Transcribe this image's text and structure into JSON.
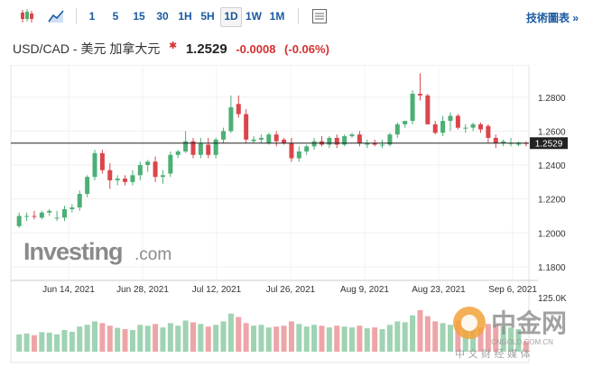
{
  "toolbar": {
    "timeframes": [
      "1",
      "5",
      "15",
      "30",
      "1H",
      "5H",
      "1D",
      "1W",
      "1M"
    ],
    "active_timeframe": "1D",
    "tech_chart_link": "技術圖表 »"
  },
  "header": {
    "pair": "USD/CAD - 美元 加拿大元",
    "alert_icon": "✱",
    "price": "1.2529",
    "change": "-0.0008",
    "change_pct": "(-0.06%)"
  },
  "logo": {
    "brand": "Investing",
    "suffix": ".com"
  },
  "watermark": {
    "name": "中金网",
    "url": "CNGOLD.COM.CN",
    "slogan": "中 文 财 经 媒 体"
  },
  "colors": {
    "up": "#4caf75",
    "down": "#d9464b",
    "vol_up": "#9fd3b2",
    "vol_down": "#eea5a8",
    "accent": "#1a5aa0"
  },
  "chart_data": {
    "type": "candlestick",
    "x_tick_labels": [
      "Jun 14, 2021",
      "Jun 28, 2021",
      "Jul 12, 2021",
      "Jul 26, 2021",
      "Aug 9, 2021",
      "Aug 23, 2021",
      "Sep 6, 2021"
    ],
    "y_tick_labels": [
      "1.2800",
      "1.2600",
      "1.2400",
      "1.2200",
      "1.2000",
      "1.1800"
    ],
    "ylim": [
      1.172,
      1.299
    ],
    "current_price_label": "1.2529",
    "current_price": 1.2529,
    "volume_axis_label": "125.0K",
    "volume_max": 125,
    "candles": [
      [
        1.204,
        1.212,
        1.203,
        1.21
      ],
      [
        1.21,
        1.212,
        1.207,
        1.21
      ],
      [
        1.21,
        1.213,
        1.208,
        1.2095
      ],
      [
        1.209,
        1.213,
        1.208,
        1.212
      ],
      [
        1.212,
        1.214,
        1.21,
        1.213
      ],
      [
        1.209,
        1.213,
        1.207,
        1.209
      ],
      [
        1.209,
        1.216,
        1.207,
        1.214
      ],
      [
        1.214,
        1.217,
        1.212,
        1.215
      ],
      [
        1.215,
        1.225,
        1.213,
        1.223
      ],
      [
        1.223,
        1.234,
        1.221,
        1.233
      ],
      [
        1.233,
        1.249,
        1.231,
        1.247
      ],
      [
        1.247,
        1.249,
        1.235,
        1.237
      ],
      [
        1.237,
        1.241,
        1.226,
        1.231
      ],
      [
        1.231,
        1.234,
        1.228,
        1.232
      ],
      [
        1.232,
        1.234,
        1.228,
        1.23
      ],
      [
        1.23,
        1.237,
        1.228,
        1.234
      ],
      [
        1.234,
        1.242,
        1.231,
        1.24
      ],
      [
        1.24,
        1.243,
        1.236,
        1.242
      ],
      [
        1.242,
        1.245,
        1.23,
        1.233
      ],
      [
        1.233,
        1.237,
        1.229,
        1.234
      ],
      [
        1.235,
        1.248,
        1.233,
        1.246
      ],
      [
        1.246,
        1.249,
        1.244,
        1.248
      ],
      [
        1.248,
        1.26,
        1.247,
        1.254
      ],
      [
        1.254,
        1.256,
        1.244,
        1.246
      ],
      [
        1.246,
        1.256,
        1.244,
        1.253
      ],
      [
        1.252,
        1.256,
        1.244,
        1.246
      ],
      [
        1.246,
        1.256,
        1.244,
        1.255
      ],
      [
        1.255,
        1.262,
        1.253,
        1.26
      ],
      [
        1.26,
        1.281,
        1.259,
        1.274
      ],
      [
        1.276,
        1.281,
        1.268,
        1.27
      ],
      [
        1.27,
        1.273,
        1.253,
        1.255
      ],
      [
        1.254,
        1.257,
        1.253,
        1.255
      ],
      [
        1.255,
        1.258,
        1.253,
        1.256
      ],
      [
        1.253,
        1.259,
        1.252,
        1.258
      ],
      [
        1.258,
        1.26,
        1.251,
        1.254
      ],
      [
        1.255,
        1.256,
        1.252,
        1.253
      ],
      [
        1.253,
        1.256,
        1.242,
        1.244
      ],
      [
        1.244,
        1.251,
        1.242,
        1.248
      ],
      [
        1.248,
        1.252,
        1.246,
        1.251
      ],
      [
        1.251,
        1.256,
        1.249,
        1.254
      ],
      [
        1.254,
        1.257,
        1.251,
        1.252
      ],
      [
        1.252,
        1.257,
        1.25,
        1.256
      ],
      [
        1.256,
        1.258,
        1.25,
        1.252
      ],
      [
        1.252,
        1.258,
        1.251,
        1.257
      ],
      [
        1.257,
        1.259,
        1.256,
        1.258
      ],
      [
        1.258,
        1.26,
        1.251,
        1.253
      ],
      [
        1.252,
        1.255,
        1.25,
        1.253
      ],
      [
        1.253,
        1.255,
        1.251,
        1.252
      ],
      [
        1.252,
        1.255,
        1.25,
        1.252
      ],
      [
        1.252,
        1.259,
        1.251,
        1.258
      ],
      [
        1.258,
        1.265,
        1.256,
        1.264
      ],
      [
        1.264,
        1.266,
        1.262,
        1.266
      ],
      [
        1.266,
        1.284,
        1.264,
        1.282
      ],
      [
        1.282,
        1.294,
        1.278,
        1.281
      ],
      [
        1.281,
        1.282,
        1.264,
        1.264
      ],
      [
        1.264,
        1.266,
        1.258,
        1.259
      ],
      [
        1.259,
        1.269,
        1.257,
        1.266
      ],
      [
        1.266,
        1.271,
        1.26,
        1.269
      ],
      [
        1.269,
        1.27,
        1.261,
        1.262
      ],
      [
        1.262,
        1.264,
        1.259,
        1.262
      ],
      [
        1.262,
        1.265,
        1.26,
        1.264
      ],
      [
        1.264,
        1.265,
        1.259,
        1.261
      ],
      [
        1.263,
        1.264,
        1.253,
        1.256
      ],
      [
        1.256,
        1.258,
        1.25,
        1.253
      ],
      [
        1.253,
        1.255,
        1.251,
        1.254
      ],
      [
        1.253,
        1.256,
        1.251,
        1.253
      ],
      [
        1.252,
        1.254,
        1.251,
        1.253
      ],
      [
        1.253,
        1.254,
        1.251,
        1.2529
      ]
    ],
    "volumes": [
      40,
      42,
      38,
      45,
      44,
      40,
      50,
      46,
      58,
      62,
      70,
      66,
      60,
      55,
      52,
      50,
      62,
      60,
      64,
      56,
      66,
      60,
      72,
      68,
      64,
      58,
      62,
      70,
      88,
      80,
      66,
      60,
      62,
      56,
      58,
      60,
      70,
      64,
      58,
      62,
      60,
      56,
      60,
      58,
      56,
      60,
      54,
      56,
      52,
      62,
      70,
      68,
      84,
      96,
      82,
      70,
      66,
      62,
      72,
      60,
      58,
      56,
      64,
      62,
      58,
      56,
      52,
      24
    ]
  }
}
